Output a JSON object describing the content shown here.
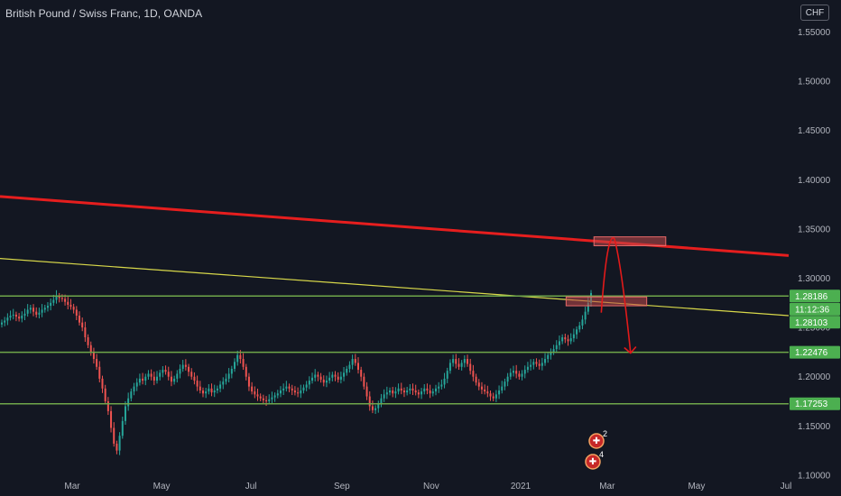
{
  "header": {
    "symbol_title": "British Pound / Swiss Franc, 1D, OANDA",
    "currency": "CHF"
  },
  "colors": {
    "background": "#131722",
    "up_candle": "#26a69a",
    "down_candle": "#ef5350",
    "horizontal_level": "#6fa64a",
    "level_tag": "#4caf50",
    "resistance_trendline": "#e61e1e",
    "yellow_trendline": "#d8d84a",
    "projection_arrow": "#e21a1a",
    "highlight_box": "#c0494a"
  },
  "chart_data": {
    "type": "candlestick",
    "title": "British Pound / Swiss Franc, 1D, OANDA",
    "x_ticks": [
      "Mar",
      "May",
      "Jul",
      "Sep",
      "Nov",
      "2021",
      "Mar",
      "May",
      "Jul"
    ],
    "y_ticks": [
      "1.10000",
      "1.15000",
      "1.20000",
      "1.25000",
      "1.30000",
      "1.35000",
      "1.40000",
      "1.45000",
      "1.50000",
      "1.55000"
    ],
    "ylim": [
      1.1,
      1.56
    ],
    "grid": false,
    "horizontal_levels": [
      1.28186,
      1.22476,
      1.17253
    ],
    "price_tags": [
      {
        "label": "1.28186"
      },
      {
        "label": "11:12:36"
      },
      {
        "label": "1.28103"
      },
      {
        "label": "1.22476"
      },
      {
        "label": "1.17253"
      }
    ],
    "price_tag_values": [
      1.28186,
      1.2685,
      1.2553,
      1.22476,
      1.17253
    ],
    "trendlines": [
      {
        "from": [
          "2020-01-01",
          1.383
        ],
        "to": [
          "2021-08-01",
          1.323
        ]
      },
      {
        "from": [
          "2020-01-01",
          1.32
        ],
        "to": [
          "2021-08-01",
          1.262
        ]
      }
    ],
    "highlight_zones": [
      {
        "from": "2021-02-20",
        "to": "2021-04-10",
        "y_low": 1.333,
        "y_high": 1.342
      },
      {
        "from": "2021-02-01",
        "to": "2021-03-28",
        "y_low": 1.272,
        "y_high": 1.281
      }
    ],
    "projection_path": [
      [
        "2021-02-25",
        1.265
      ],
      [
        "2021-03-06",
        1.34
      ],
      [
        "2021-03-17",
        1.224
      ]
    ],
    "closes": [
      1.255,
      1.257,
      1.26,
      1.262,
      1.263,
      1.261,
      1.259,
      1.262,
      1.264,
      1.268,
      1.27,
      1.266,
      1.263,
      1.265,
      1.268,
      1.27,
      1.272,
      1.275,
      1.278,
      1.282,
      1.28,
      1.279,
      1.276,
      1.273,
      1.271,
      1.268,
      1.262,
      1.255,
      1.25,
      1.24,
      1.232,
      1.225,
      1.218,
      1.21,
      1.198,
      1.188,
      1.175,
      1.165,
      1.148,
      1.132,
      1.125,
      1.14,
      1.155,
      1.17,
      1.178,
      1.185,
      1.19,
      1.194,
      1.198,
      1.196,
      1.2,
      1.203,
      1.2,
      1.196,
      1.2,
      1.204,
      1.207,
      1.205,
      1.2,
      1.195,
      1.198,
      1.203,
      1.208,
      1.212,
      1.21,
      1.205,
      1.2,
      1.196,
      1.19,
      1.186,
      1.183,
      1.185,
      1.188,
      1.184,
      1.186,
      1.188,
      1.192,
      1.195,
      1.198,
      1.203,
      1.208,
      1.215,
      1.222,
      1.218,
      1.21,
      1.2,
      1.19,
      1.185,
      1.182,
      1.18,
      1.178,
      1.176,
      1.175,
      1.177,
      1.179,
      1.181,
      1.183,
      1.186,
      1.188,
      1.19,
      1.188,
      1.186,
      1.184,
      1.183,
      1.186,
      1.189,
      1.192,
      1.196,
      1.199,
      1.202,
      1.2,
      1.197,
      1.194,
      1.196,
      1.199,
      1.202,
      1.2,
      1.197,
      1.2,
      1.204,
      1.208,
      1.212,
      1.218,
      1.214,
      1.207,
      1.2,
      1.19,
      1.18,
      1.17,
      1.166,
      1.168,
      1.172,
      1.178,
      1.182,
      1.184,
      1.186,
      1.183,
      1.185,
      1.188,
      1.186,
      1.184,
      1.186,
      1.188,
      1.186,
      1.184,
      1.182,
      1.185,
      1.188,
      1.186,
      1.183,
      1.185,
      1.188,
      1.19,
      1.192,
      1.198,
      1.206,
      1.214,
      1.218,
      1.213,
      1.21,
      1.214,
      1.218,
      1.213,
      1.206,
      1.2,
      1.194,
      1.19,
      1.187,
      1.185,
      1.183,
      1.18,
      1.178,
      1.182,
      1.186,
      1.19,
      1.195,
      1.2,
      1.204,
      1.206,
      1.203,
      1.2,
      1.203,
      1.207,
      1.21,
      1.212,
      1.215,
      1.213,
      1.211,
      1.214,
      1.218,
      1.222,
      1.225,
      1.228,
      1.232,
      1.236,
      1.24,
      1.238,
      1.236,
      1.239,
      1.243,
      1.248,
      1.252,
      1.258,
      1.266,
      1.275,
      1.285
    ]
  }
}
